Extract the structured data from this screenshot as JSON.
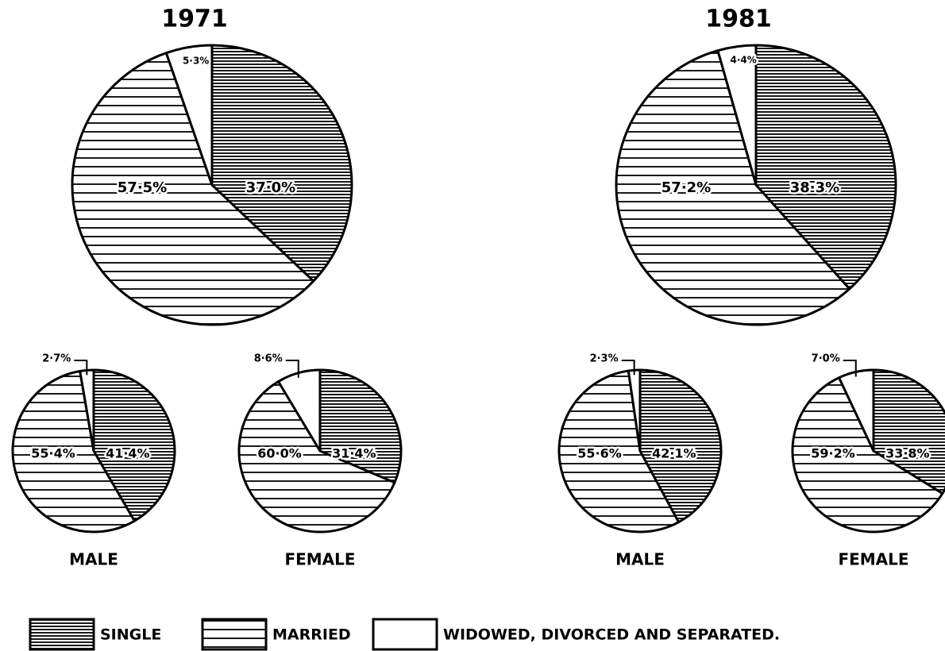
{
  "chart_data": [
    {
      "type": "pie",
      "title": "1971",
      "values": [
        37.0,
        57.5,
        5.3
      ],
      "value_labels": [
        "37·0%",
        "57·5%",
        "5·3%"
      ]
    },
    {
      "type": "pie",
      "title": "MALE",
      "values": [
        41.4,
        55.4,
        2.7
      ],
      "value_labels": [
        "41·4%",
        "55·4%",
        "2·7%"
      ]
    },
    {
      "type": "pie",
      "title": "FEMALE",
      "values": [
        31.4,
        60.0,
        8.6
      ],
      "value_labels": [
        "31·4%",
        "60·0%",
        "8·6%"
      ]
    },
    {
      "type": "pie",
      "title": "1981",
      "values": [
        38.3,
        57.2,
        4.4
      ],
      "value_labels": [
        "38·3%",
        "57·2%",
        "4·4%"
      ]
    },
    {
      "type": "pie",
      "title": "MALE",
      "values": [
        42.1,
        55.6,
        2.3
      ],
      "value_labels": [
        "42·1%",
        "55·6%",
        "2·3%"
      ]
    },
    {
      "type": "pie",
      "title": "FEMALE",
      "values": [
        33.8,
        59.2,
        7.0
      ],
      "value_labels": [
        "33·8%",
        "59·2%",
        "7·0%"
      ]
    }
  ],
  "legend": {
    "entries": [
      "SINGLE",
      "MARRIED",
      "WIDOWED, DIVORCED AND SEPARATED."
    ]
  }
}
